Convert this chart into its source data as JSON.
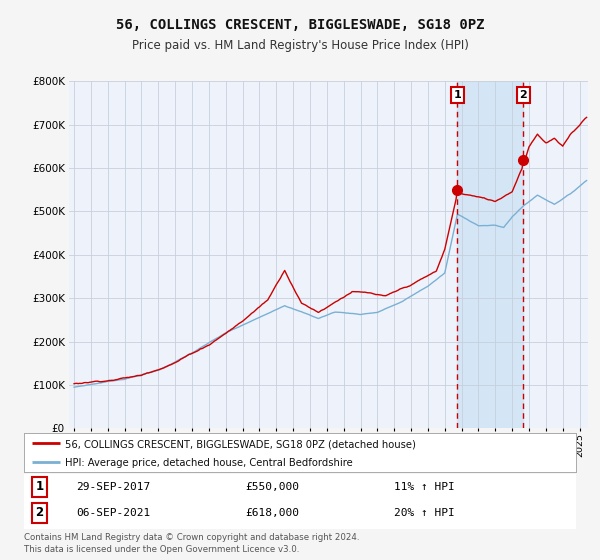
{
  "title": "56, COLLINGS CRESCENT, BIGGLESWADE, SG18 0PZ",
  "subtitle": "Price paid vs. HM Land Registry's House Price Index (HPI)",
  "legend_line1": "56, COLLINGS CRESCENT, BIGGLESWADE, SG18 0PZ (detached house)",
  "legend_line2": "HPI: Average price, detached house, Central Bedfordshire",
  "annotation1_date": "29-SEP-2017",
  "annotation1_price": "£550,000",
  "annotation1_hpi": "11% ↑ HPI",
  "annotation2_date": "06-SEP-2021",
  "annotation2_price": "£618,000",
  "annotation2_hpi": "20% ↑ HPI",
  "footer": "Contains HM Land Registry data © Crown copyright and database right 2024.\nThis data is licensed under the Open Government Licence v3.0.",
  "sale1_year": 2017.75,
  "sale1_price": 550000,
  "sale2_year": 2021.67,
  "sale2_price": 618000,
  "hpi_color": "#7ab0d4",
  "price_color": "#cc0000",
  "plot_bg_color": "#eef3fb",
  "fig_bg_color": "#f5f5f5",
  "grid_color": "#c8d0dc",
  "span_color": "#d0e4f4",
  "annotation_border_color": "#cc0000",
  "ylim": [
    0,
    800000
  ],
  "ytick_interval": 100000,
  "xstart": 1995,
  "xend": 2025
}
